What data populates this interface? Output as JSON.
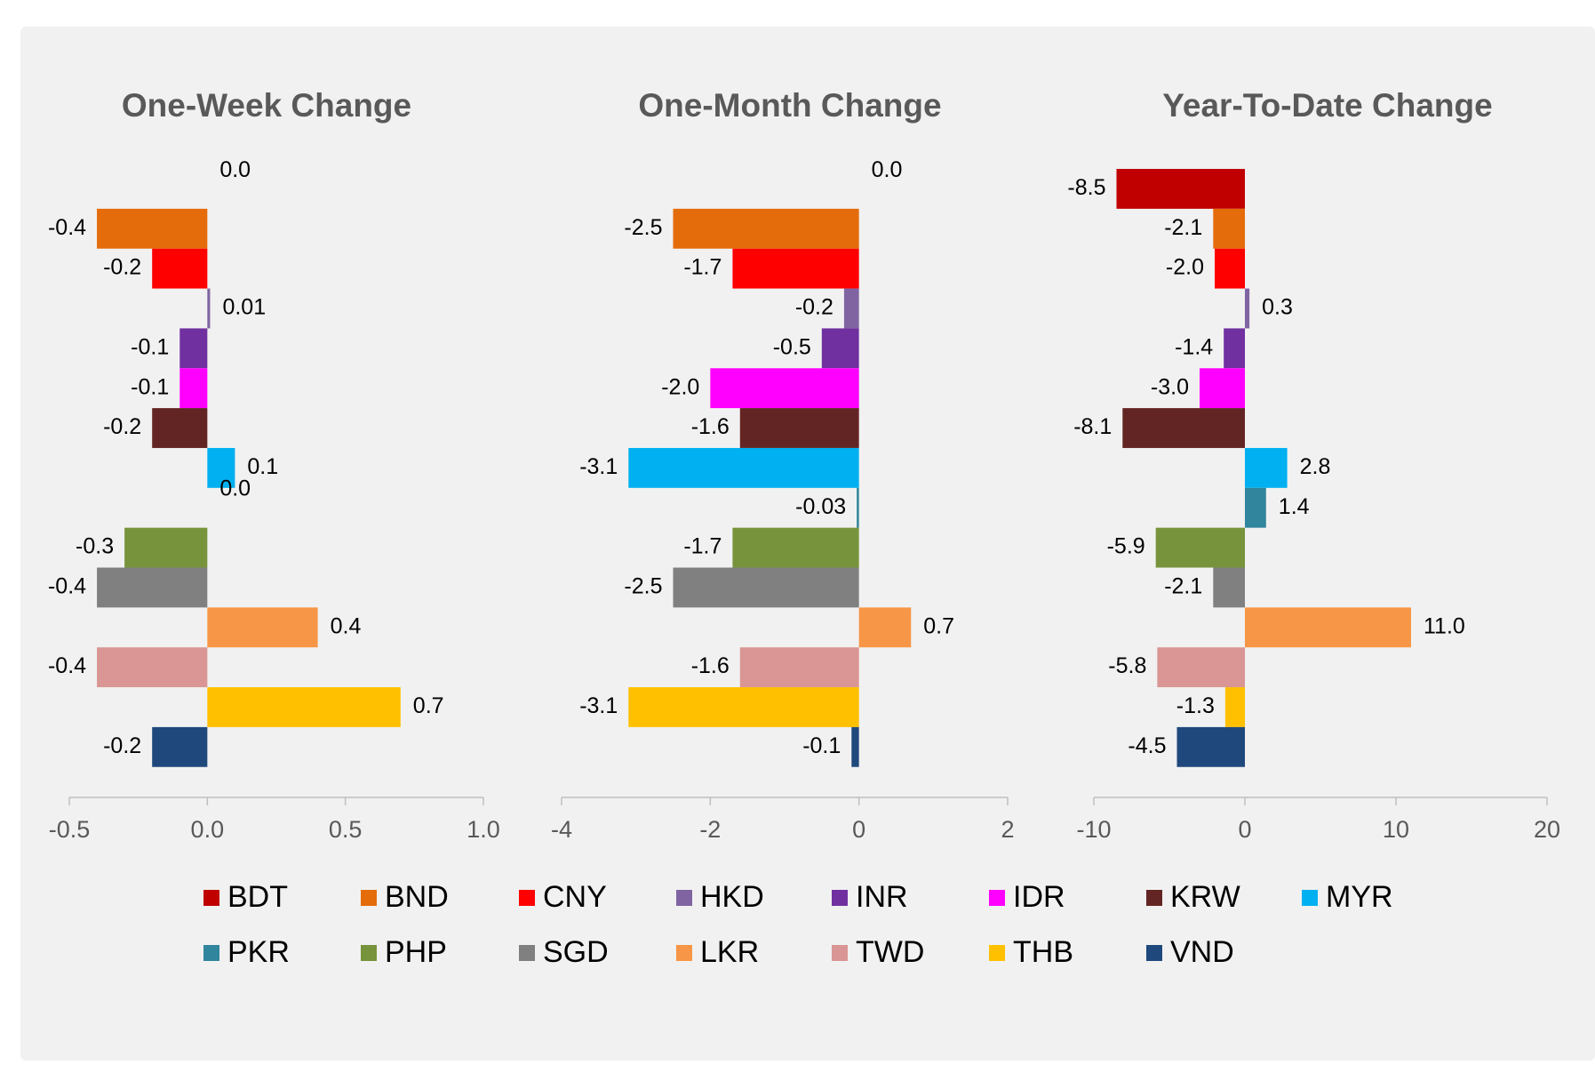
{
  "chart_data": [
    {
      "type": "hbar",
      "title": "One-Week Change",
      "categories": [
        "BDT",
        "BND",
        "CNY",
        "HKD",
        "INR",
        "IDR",
        "KRW",
        "MYR",
        "PKR",
        "PHP",
        "SGD",
        "LKR",
        "TWD",
        "THB",
        "VND"
      ],
      "colors": [
        "#c00000",
        "#e46c0a",
        "#ff0000",
        "#8064a2",
        "#7030a0",
        "#ff00ff",
        "#632523",
        "#00b0f0",
        "#31859c",
        "#77933c",
        "#808080",
        "#f79646",
        "#d99694",
        "#ffc000",
        "#1f497d"
      ],
      "values": [
        0,
        -0.4,
        -0.2,
        0.01,
        -0.1,
        -0.1,
        -0.2,
        0.1,
        0,
        -0.3,
        -0.4,
        0.4,
        -0.4,
        0.7,
        -0.2
      ],
      "value_labels": [
        "0.0",
        "-0.4",
        "-0.2",
        "0.01",
        "-0.1",
        "-0.1",
        "-0.2",
        "0.1",
        "0.0",
        "-0.3",
        "-0.4",
        "0.4",
        "-0.4",
        "0.7",
        "-0.2"
      ],
      "xlim": [
        -0.5,
        1.0
      ],
      "xticks": [
        -0.5,
        {
          "value": 0,
          "label": "0.0"
        },
        0.5,
        {
          "value": 1.0,
          "label": "1.0"
        }
      ]
    },
    {
      "type": "hbar",
      "title": "One-Month Change",
      "categories": [
        "BDT",
        "BND",
        "CNY",
        "HKD",
        "INR",
        "IDR",
        "KRW",
        "MYR",
        "PKR",
        "PHP",
        "SGD",
        "LKR",
        "TWD",
        "THB",
        "VND"
      ],
      "colors": [
        "#c00000",
        "#e46c0a",
        "#ff0000",
        "#8064a2",
        "#7030a0",
        "#ff00ff",
        "#632523",
        "#00b0f0",
        "#31859c",
        "#77933c",
        "#808080",
        "#f79646",
        "#d99694",
        "#ffc000",
        "#1f497d"
      ],
      "values": [
        0,
        -2.5,
        -1.7,
        -0.2,
        -0.5,
        -2.0,
        -1.6,
        -3.1,
        -0.03,
        -1.7,
        -2.5,
        0.7,
        -1.6,
        -3.1,
        -0.1
      ],
      "value_labels": [
        "0.0",
        "-2.5",
        "-1.7",
        "-0.2",
        "-0.5",
        "-2.0",
        "-1.6",
        "-3.1",
        "-0.03",
        "-1.7",
        "-2.5",
        "0.7",
        "-1.6",
        "-3.1",
        "-0.1"
      ],
      "xlim": [
        -4,
        2
      ],
      "xticks": [
        -4,
        -2,
        0,
        2
      ]
    },
    {
      "type": "hbar",
      "title": "Year-To-Date Change",
      "categories": [
        "BDT",
        "BND",
        "CNY",
        "HKD",
        "INR",
        "IDR",
        "KRW",
        "MYR",
        "PKR",
        "PHP",
        "SGD",
        "LKR",
        "TWD",
        "THB",
        "VND"
      ],
      "colors": [
        "#c00000",
        "#e46c0a",
        "#ff0000",
        "#8064a2",
        "#7030a0",
        "#ff00ff",
        "#632523",
        "#00b0f0",
        "#31859c",
        "#77933c",
        "#808080",
        "#f79646",
        "#d99694",
        "#ffc000",
        "#1f497d"
      ],
      "values": [
        -8.5,
        -2.1,
        -2.0,
        0.3,
        -1.4,
        -3.0,
        -8.1,
        2.8,
        1.4,
        -5.9,
        -2.1,
        11.0,
        -5.8,
        -1.3,
        -4.5
      ],
      "value_labels": [
        "-8.5",
        "-2.1",
        "-2.0",
        "0.3",
        "-1.4",
        "-3.0",
        "-8.1",
        "2.8",
        "1.4",
        "-5.9",
        "-2.1",
        "11.0",
        "-5.8",
        "-1.3",
        "-4.5"
      ],
      "xlim": [
        -10,
        20
      ],
      "xticks": [
        -10,
        0,
        10,
        20
      ]
    }
  ]
}
